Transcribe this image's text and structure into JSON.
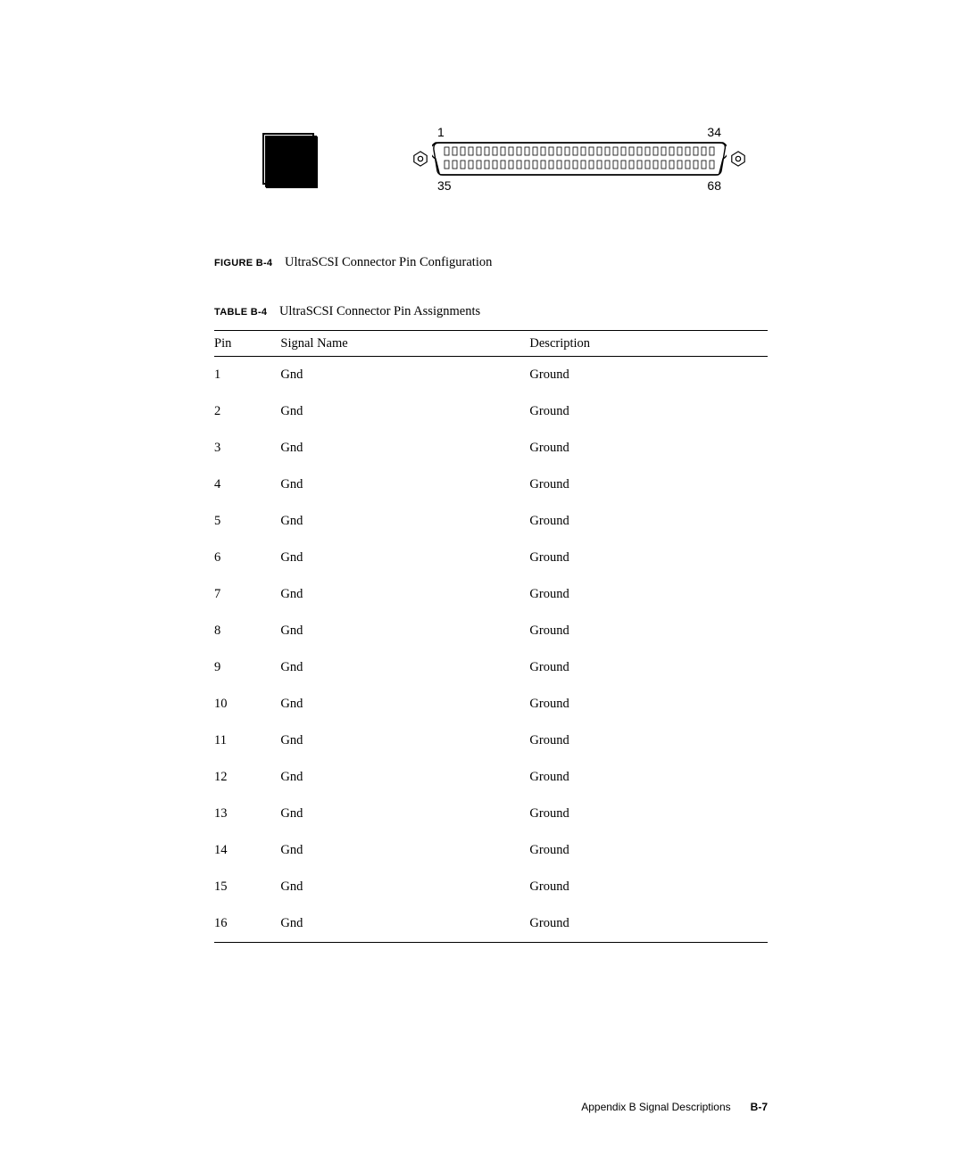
{
  "figure": {
    "pin_labels": {
      "tl": "1",
      "tr": "34",
      "bl": "35",
      "br": "68"
    },
    "caption_label": "FIGURE B-4",
    "caption_text": "UltraSCSI Connector Pin Configuration"
  },
  "table": {
    "caption_label": "TABLE B-4",
    "caption_text": "UltraSCSI Connector Pin Assignments",
    "columns": [
      "Pin",
      "Signal Name",
      "Description"
    ],
    "rows": [
      [
        "1",
        "Gnd",
        "Ground"
      ],
      [
        "2",
        "Gnd",
        "Ground"
      ],
      [
        "3",
        "Gnd",
        "Ground"
      ],
      [
        "4",
        "Gnd",
        "Ground"
      ],
      [
        "5",
        "Gnd",
        "Ground"
      ],
      [
        "6",
        "Gnd",
        "Ground"
      ],
      [
        "7",
        "Gnd",
        "Ground"
      ],
      [
        "8",
        "Gnd",
        "Ground"
      ],
      [
        "9",
        "Gnd",
        "Ground"
      ],
      [
        "10",
        "Gnd",
        "Ground"
      ],
      [
        "11",
        "Gnd",
        "Ground"
      ],
      [
        "12",
        "Gnd",
        "Ground"
      ],
      [
        "13",
        "Gnd",
        "Ground"
      ],
      [
        "14",
        "Gnd",
        "Ground"
      ],
      [
        "15",
        "Gnd",
        "Ground"
      ],
      [
        "16",
        "Gnd",
        "Ground"
      ]
    ]
  },
  "footer": {
    "text": "Appendix B    Signal Descriptions",
    "page": "B-7"
  }
}
